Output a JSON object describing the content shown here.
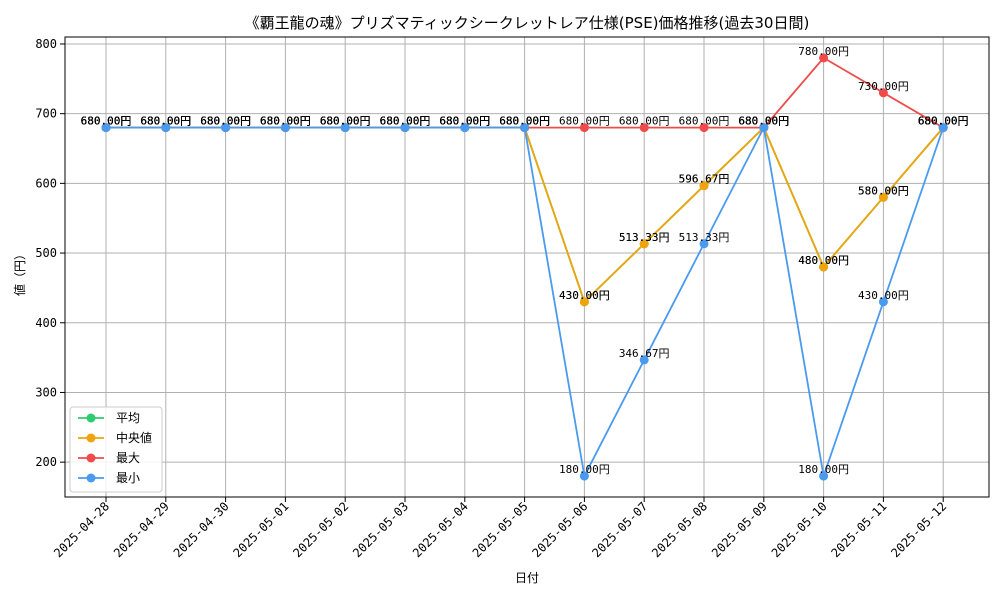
{
  "chart_data": {
    "type": "line",
    "title": "《覇王龍の魂》プリズマティックシークレットレア仕様(PSE)価格推移(過去30日間)",
    "xlabel": "日付",
    "ylabel": "値（円）",
    "ylim": [
      150,
      810
    ],
    "yticks": [
      200,
      300,
      400,
      500,
      600,
      700,
      800
    ],
    "grid": true,
    "legend_position": "bottom-left",
    "value_suffix": "円",
    "categories": [
      "2025-04-28",
      "2025-04-29",
      "2025-04-30",
      "2025-05-01",
      "2025-05-02",
      "2025-05-03",
      "2025-05-04",
      "2025-05-05",
      "2025-05-06",
      "2025-05-07",
      "2025-05-08",
      "2025-05-09",
      "2025-05-10",
      "2025-05-11",
      "2025-05-12"
    ],
    "series": [
      {
        "name": "平均",
        "color": "#2ecc71",
        "values": [
          680,
          680,
          680,
          680,
          680,
          680,
          680,
          680,
          430,
          513.33,
          596.67,
          680,
          480,
          580,
          680
        ]
      },
      {
        "name": "中央値",
        "color": "#f0a30a",
        "values": [
          680,
          680,
          680,
          680,
          680,
          680,
          680,
          680,
          430,
          513.33,
          596.67,
          680,
          480,
          580,
          680
        ]
      },
      {
        "name": "最大",
        "color": "#ef4b4b",
        "values": [
          680,
          680,
          680,
          680,
          680,
          680,
          680,
          680,
          680,
          680,
          680,
          680,
          780,
          730,
          680
        ]
      },
      {
        "name": "最小",
        "color": "#4a9af0",
        "values": [
          680,
          680,
          680,
          680,
          680,
          680,
          680,
          680,
          180,
          346.67,
          513.33,
          680,
          180,
          430,
          680
        ]
      }
    ]
  }
}
